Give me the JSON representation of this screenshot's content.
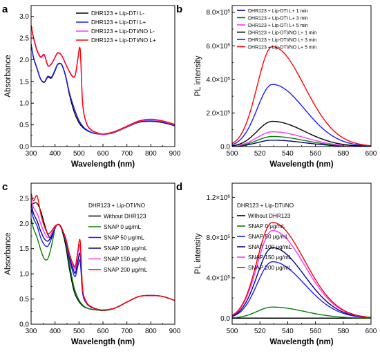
{
  "chart_data": [
    {
      "panel": "a",
      "type": "line",
      "xlabel": "Wavelength (nm)",
      "ylabel": "Absorbance",
      "xlim": [
        300,
        900
      ],
      "ylim": [
        0,
        3.25
      ],
      "xticks": [
        "300",
        "400",
        "500",
        "600",
        "700",
        "800",
        "900"
      ],
      "yticks": [
        "0.0",
        "0.5",
        "1.0",
        "1.5",
        "2.0",
        "2.5",
        "3.0"
      ],
      "legend_position": "top-right",
      "legend_title": "",
      "series": [
        {
          "name": "DHR123 + Lip-DTI L-",
          "color": "#000000",
          "x": [
            300,
            310,
            325,
            340,
            355,
            370,
            385,
            400,
            410,
            420,
            430,
            445,
            460,
            480,
            500,
            520,
            540,
            560,
            580,
            600,
            620,
            650,
            700,
            750,
            800,
            850,
            900
          ],
          "y": [
            2.36,
            2.05,
            1.79,
            1.55,
            1.48,
            1.6,
            1.58,
            1.75,
            1.88,
            1.91,
            1.86,
            1.6,
            1.2,
            0.8,
            0.55,
            0.42,
            0.35,
            0.31,
            0.29,
            0.28,
            0.29,
            0.33,
            0.45,
            0.56,
            0.58,
            0.55,
            0.48
          ]
        },
        {
          "name": "DHR123 + Lip-DTI L+",
          "color": "#1a1aff",
          "x": [
            300,
            310,
            325,
            340,
            355,
            370,
            385,
            400,
            410,
            420,
            430,
            445,
            460,
            480,
            500,
            520,
            540,
            560,
            580,
            600,
            620,
            650,
            700,
            750,
            800,
            850,
            900
          ],
          "y": [
            2.36,
            2.06,
            1.8,
            1.56,
            1.49,
            1.62,
            1.6,
            1.77,
            1.89,
            1.92,
            1.87,
            1.62,
            1.24,
            0.88,
            0.6,
            0.44,
            0.36,
            0.31,
            0.29,
            0.28,
            0.29,
            0.34,
            0.46,
            0.57,
            0.59,
            0.56,
            0.49
          ]
        },
        {
          "name": "DHR123 + Lip-DTI/NO L-",
          "color": "#ff33ff",
          "x": [
            300,
            310,
            325,
            340,
            355,
            370,
            385,
            400,
            410,
            420,
            430,
            445,
            460,
            475,
            485,
            495,
            505,
            515,
            530,
            550,
            575,
            600,
            650,
            700,
            750,
            800,
            850,
            900
          ],
          "y": [
            2.78,
            2.5,
            2.2,
            2.05,
            2.1,
            1.86,
            1.9,
            2.05,
            2.15,
            2.14,
            2.07,
            1.89,
            1.72,
            1.6,
            1.65,
            2.0,
            2.23,
            1.0,
            0.55,
            0.38,
            0.31,
            0.28,
            0.34,
            0.46,
            0.58,
            0.62,
            0.58,
            0.5
          ]
        },
        {
          "name": "DHR123 + Lip-DTI/NO L+",
          "color": "#ff0000",
          "x": [
            300,
            310,
            325,
            340,
            355,
            370,
            385,
            400,
            410,
            420,
            430,
            445,
            460,
            475,
            485,
            495,
            505,
            515,
            530,
            550,
            575,
            600,
            650,
            700,
            750,
            800,
            850,
            900
          ],
          "y": [
            2.8,
            2.52,
            2.22,
            2.07,
            2.12,
            1.87,
            1.91,
            2.06,
            2.16,
            2.15,
            2.08,
            1.9,
            1.73,
            1.61,
            1.66,
            2.01,
            2.24,
            1.02,
            0.56,
            0.39,
            0.32,
            0.29,
            0.35,
            0.47,
            0.59,
            0.63,
            0.59,
            0.51
          ]
        }
      ]
    },
    {
      "panel": "b",
      "type": "line",
      "xlabel": "Wavelength (nm)",
      "ylabel": "PL intensity",
      "xlim": [
        500,
        600
      ],
      "ylim": [
        0,
        840000
      ],
      "xticks": [
        "500",
        "520",
        "540",
        "560",
        "580",
        "600"
      ],
      "ytick_values": [
        0,
        200000,
        400000,
        600000,
        800000
      ],
      "yticks": [
        "0.0",
        "2.0×10⁵",
        "4.0×10⁵",
        "6.0×10⁵",
        "8.0×10⁵"
      ],
      "legend_position": "top-right",
      "legend_title": "",
      "series": [
        {
          "name": "DHR123 + Lip-DTI L+ 1 min",
          "color": "#000080",
          "peak": 38000
        },
        {
          "name": "DHR123 + Lip-DTI L+ 3 min",
          "color": "#008000",
          "peak": 60000
        },
        {
          "name": "DHR123 + Lip-DTI L+ 5 min",
          "color": "#ff33ff",
          "peak": 88000
        },
        {
          "name": "DHR123 + Lip-DTI/NO L+ 1 min",
          "color": "#000000",
          "peak": 150000
        },
        {
          "name": "DHR123 + Lip-DTI/NO L+ 3 min",
          "color": "#1a1aff",
          "peak": 370000
        },
        {
          "name": "DHR123 + Lip-DTI/NO L+ 5 min",
          "color": "#ff0000",
          "peak": 595000
        }
      ]
    },
    {
      "panel": "c",
      "type": "line",
      "xlabel": "Wavelength (nm)",
      "ylabel": "Absorbance",
      "xlim": [
        300,
        900
      ],
      "ylim": [
        0,
        2.8
      ],
      "xticks": [
        "300",
        "400",
        "500",
        "600",
        "700",
        "800",
        "900"
      ],
      "yticks": [
        "0.0",
        "0.5",
        "1.0",
        "1.5",
        "2.0",
        "2.5"
      ],
      "legend_position": "top-right",
      "legend_title": "DHR123 + Lip-DTI/NO",
      "series": [
        {
          "name": "Without DHR123",
          "color": "#000000",
          "x": [
            300,
            310,
            325,
            340,
            355,
            370,
            385,
            400,
            410,
            420,
            430,
            445,
            460,
            480,
            500,
            520,
            540,
            560,
            580,
            600,
            620,
            650,
            700,
            750,
            800,
            850,
            900
          ],
          "y": [
            2.38,
            2.4,
            2.4,
            2.25,
            2.0,
            1.78,
            1.72,
            1.9,
            1.98,
            1.96,
            1.85,
            1.55,
            1.1,
            0.65,
            0.45,
            0.35,
            0.31,
            0.29,
            0.28,
            0.27,
            0.28,
            0.32,
            0.44,
            0.55,
            0.57,
            0.55,
            0.47
          ]
        },
        {
          "name": "SNAP 0 μg/mL",
          "color": "#008000",
          "x": [
            300,
            310,
            325,
            340,
            355,
            370,
            385,
            400,
            410,
            420,
            430,
            445,
            460,
            480,
            500,
            520,
            540,
            560,
            580,
            600,
            620,
            650,
            700,
            750,
            800,
            850,
            900
          ],
          "y": [
            2.1,
            1.9,
            1.72,
            1.48,
            1.3,
            1.3,
            1.55,
            1.9,
            1.97,
            1.97,
            1.88,
            1.62,
            1.2,
            0.72,
            0.48,
            0.36,
            0.31,
            0.29,
            0.28,
            0.27,
            0.28,
            0.32,
            0.44,
            0.55,
            0.57,
            0.55,
            0.47
          ]
        },
        {
          "name": "SNAP 50 μg/mL",
          "color": "#1a1aff",
          "x": [
            300,
            310,
            325,
            340,
            355,
            370,
            385,
            400,
            410,
            420,
            430,
            445,
            460,
            475,
            485,
            495,
            505,
            515,
            530,
            550,
            575,
            600,
            650,
            700,
            750,
            800,
            850,
            900
          ],
          "y": [
            2.3,
            2.1,
            1.95,
            1.72,
            1.58,
            1.55,
            1.7,
            1.92,
            1.97,
            1.97,
            1.88,
            1.65,
            1.3,
            1.03,
            0.95,
            1.15,
            1.25,
            0.62,
            0.42,
            0.34,
            0.3,
            0.28,
            0.32,
            0.44,
            0.55,
            0.57,
            0.55,
            0.47
          ]
        },
        {
          "name": "SNAP 100 μg/mL",
          "color": "#00008b",
          "x": [
            300,
            310,
            325,
            340,
            355,
            370,
            385,
            400,
            410,
            420,
            430,
            445,
            460,
            475,
            485,
            495,
            505,
            515,
            530,
            550,
            575,
            600,
            650,
            700,
            750,
            800,
            850,
            900
          ],
          "y": [
            2.4,
            2.2,
            2.05,
            1.85,
            1.7,
            1.65,
            1.75,
            1.93,
            1.97,
            1.97,
            1.88,
            1.67,
            1.34,
            1.1,
            1.02,
            1.25,
            1.38,
            0.66,
            0.43,
            0.34,
            0.3,
            0.28,
            0.32,
            0.44,
            0.55,
            0.57,
            0.55,
            0.47
          ]
        },
        {
          "name": "SNAP 150 μg/mL",
          "color": "#ff33ff",
          "x": [
            300,
            310,
            325,
            340,
            355,
            370,
            385,
            400,
            410,
            420,
            430,
            445,
            460,
            475,
            485,
            495,
            505,
            515,
            530,
            550,
            575,
            600,
            650,
            700,
            750,
            800,
            850,
            900
          ],
          "y": [
            2.5,
            2.32,
            2.2,
            2.0,
            1.82,
            1.72,
            1.8,
            1.94,
            1.97,
            1.97,
            1.88,
            1.69,
            1.38,
            1.17,
            1.1,
            1.38,
            1.55,
            0.7,
            0.44,
            0.35,
            0.3,
            0.28,
            0.32,
            0.44,
            0.55,
            0.57,
            0.55,
            0.47
          ]
        },
        {
          "name": "SNAP 200 μg/mL",
          "color": "#ff0000",
          "x": [
            300,
            310,
            325,
            340,
            355,
            370,
            385,
            400,
            410,
            420,
            430,
            445,
            460,
            475,
            485,
            495,
            505,
            515,
            530,
            550,
            575,
            600,
            650,
            700,
            750,
            800,
            850,
            900
          ],
          "y": [
            2.6,
            2.45,
            2.55,
            2.2,
            1.95,
            1.8,
            1.85,
            1.95,
            1.98,
            1.97,
            1.88,
            1.7,
            1.4,
            1.2,
            1.15,
            1.45,
            1.65,
            0.72,
            0.45,
            0.35,
            0.3,
            0.28,
            0.32,
            0.44,
            0.55,
            0.57,
            0.55,
            0.47
          ]
        }
      ]
    },
    {
      "panel": "d",
      "type": "line",
      "xlabel": "Wavelength (nm)",
      "ylabel": "PL intensity",
      "xlim": [
        500,
        600
      ],
      "ylim": [
        -60000,
        1340000
      ],
      "xticks": [
        "500",
        "520",
        "540",
        "560",
        "580",
        "600"
      ],
      "ytick_values": [
        0,
        400000,
        800000,
        1200000
      ],
      "yticks": [
        "0.0",
        "4.0×10⁵",
        "8.0×10⁵",
        "1.2×10⁶"
      ],
      "legend_position": "top-right",
      "legend_title": "DHR123 + Lip-DTI/NO",
      "series": [
        {
          "name": "Without DHR123",
          "color": "#000000",
          "peak": 0
        },
        {
          "name": "SNAP 0 μg/mL",
          "color": "#008000",
          "peak": 110000
        },
        {
          "name": "SNAP 50 μg/mL",
          "color": "#1a1aff",
          "peak": 560000
        },
        {
          "name": "SNAP 100 μg/mL",
          "color": "#00008b",
          "peak": 700000
        },
        {
          "name": "SNAP 150 μg/mL",
          "color": "#ff33ff",
          "peak": 870000
        },
        {
          "name": "SNAP 200 μg/mL",
          "color": "#ff0000",
          "peak": 950000
        }
      ]
    }
  ]
}
